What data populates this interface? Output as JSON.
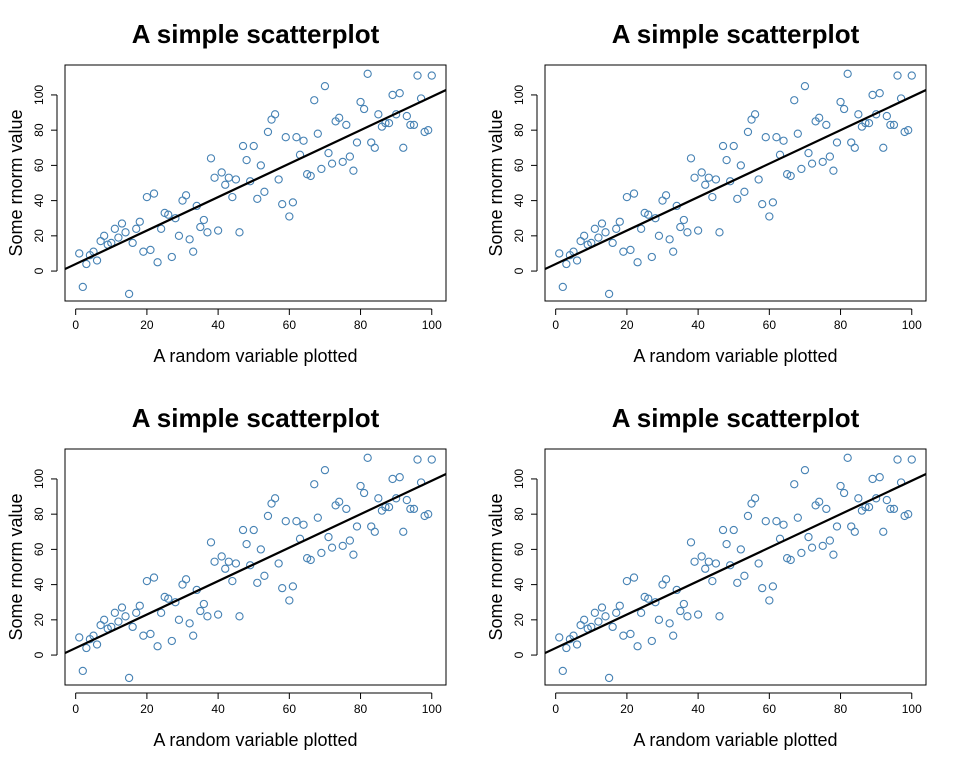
{
  "chart_data": [
    {
      "type": "scatter",
      "title": "A simple scatterplot",
      "xlabel": "A random variable plotted",
      "ylabel": "Some rnorm value",
      "xlim": [
        -3,
        104
      ],
      "ylim": [
        -17,
        117
      ],
      "xticks": [
        0,
        20,
        40,
        60,
        80,
        100
      ],
      "yticks": [
        0,
        20,
        40,
        60,
        80,
        100
      ],
      "grid": false,
      "point_color": "#4682b4",
      "line_color": "#000000",
      "fit_line": {
        "intercept": 4.0,
        "slope": 0.95
      },
      "series": [
        {
          "x": [
            1,
            2,
            3,
            4,
            5,
            6,
            7,
            8,
            9,
            10,
            11,
            12,
            13,
            14,
            15,
            16,
            17,
            18,
            19,
            20,
            21,
            22,
            23,
            24,
            25,
            26,
            27,
            28,
            29,
            30,
            31,
            32,
            33,
            34,
            35,
            36,
            37,
            38,
            39,
            40,
            41,
            42,
            43,
            44,
            45,
            46,
            47,
            48,
            49,
            50,
            51,
            52,
            53,
            54,
            55,
            56,
            57,
            58,
            59,
            60,
            61,
            62,
            63,
            64,
            65,
            66,
            67,
            68,
            69,
            70,
            71,
            72,
            73,
            74,
            75,
            76,
            77,
            78,
            79,
            80,
            81,
            82,
            83,
            84,
            85,
            86,
            87,
            88,
            89,
            90,
            91,
            92,
            93,
            94,
            95,
            96,
            97,
            98,
            99,
            100
          ],
          "y": [
            10,
            -9,
            4,
            9,
            11,
            6,
            17,
            20,
            15,
            16,
            24,
            19,
            27,
            22,
            -13,
            16,
            24,
            28,
            11,
            42,
            12,
            44,
            5,
            24,
            33,
            32,
            8,
            30,
            20,
            40,
            43,
            18,
            11,
            37,
            25,
            29,
            22,
            64,
            53,
            23,
            56,
            49,
            53,
            42,
            52,
            22,
            71,
            63,
            51,
            71,
            41,
            60,
            45,
            79,
            86,
            89,
            52,
            38,
            76,
            31,
            39,
            76,
            66,
            74,
            55,
            54,
            97,
            78,
            58,
            105,
            67,
            61,
            85,
            87,
            62,
            83,
            65,
            57,
            73,
            96,
            92,
            112,
            73,
            70,
            89,
            82,
            84,
            84,
            100,
            89,
            101,
            70,
            88,
            83,
            83,
            111,
            98,
            79,
            80,
            111
          ]
        }
      ]
    },
    {
      "type": "scatter",
      "title": "A simple scatterplot",
      "xlabel": "A random variable plotted",
      "ylabel": "Some rnorm value",
      "xlim": [
        -3,
        104
      ],
      "ylim": [
        -17,
        117
      ],
      "xticks": [
        0,
        20,
        40,
        60,
        80,
        100
      ],
      "yticks": [
        0,
        20,
        40,
        60,
        80,
        100
      ],
      "grid": false,
      "point_color": "#4682b4",
      "line_color": "#000000",
      "fit_line": {
        "intercept": 4.0,
        "slope": 0.95
      },
      "series": [
        {
          "x": [
            1,
            2,
            3,
            4,
            5,
            6,
            7,
            8,
            9,
            10,
            11,
            12,
            13,
            14,
            15,
            16,
            17,
            18,
            19,
            20,
            21,
            22,
            23,
            24,
            25,
            26,
            27,
            28,
            29,
            30,
            31,
            32,
            33,
            34,
            35,
            36,
            37,
            38,
            39,
            40,
            41,
            42,
            43,
            44,
            45,
            46,
            47,
            48,
            49,
            50,
            51,
            52,
            53,
            54,
            55,
            56,
            57,
            58,
            59,
            60,
            61,
            62,
            63,
            64,
            65,
            66,
            67,
            68,
            69,
            70,
            71,
            72,
            73,
            74,
            75,
            76,
            77,
            78,
            79,
            80,
            81,
            82,
            83,
            84,
            85,
            86,
            87,
            88,
            89,
            90,
            91,
            92,
            93,
            94,
            95,
            96,
            97,
            98,
            99,
            100
          ],
          "y": [
            10,
            -9,
            4,
            9,
            11,
            6,
            17,
            20,
            15,
            16,
            24,
            19,
            27,
            22,
            -13,
            16,
            24,
            28,
            11,
            42,
            12,
            44,
            5,
            24,
            33,
            32,
            8,
            30,
            20,
            40,
            43,
            18,
            11,
            37,
            25,
            29,
            22,
            64,
            53,
            23,
            56,
            49,
            53,
            42,
            52,
            22,
            71,
            63,
            51,
            71,
            41,
            60,
            45,
            79,
            86,
            89,
            52,
            38,
            76,
            31,
            39,
            76,
            66,
            74,
            55,
            54,
            97,
            78,
            58,
            105,
            67,
            61,
            85,
            87,
            62,
            83,
            65,
            57,
            73,
            96,
            92,
            112,
            73,
            70,
            89,
            82,
            84,
            84,
            100,
            89,
            101,
            70,
            88,
            83,
            83,
            111,
            98,
            79,
            80,
            111
          ]
        }
      ]
    },
    {
      "type": "scatter",
      "title": "A simple scatterplot",
      "xlabel": "A random variable plotted",
      "ylabel": "Some rnorm value",
      "xlim": [
        -3,
        104
      ],
      "ylim": [
        -17,
        117
      ],
      "xticks": [
        0,
        20,
        40,
        60,
        80,
        100
      ],
      "yticks": [
        0,
        20,
        40,
        60,
        80,
        100
      ],
      "grid": false,
      "point_color": "#4682b4",
      "line_color": "#000000",
      "fit_line": {
        "intercept": 4.0,
        "slope": 0.95
      },
      "series": [
        {
          "x": [
            1,
            2,
            3,
            4,
            5,
            6,
            7,
            8,
            9,
            10,
            11,
            12,
            13,
            14,
            15,
            16,
            17,
            18,
            19,
            20,
            21,
            22,
            23,
            24,
            25,
            26,
            27,
            28,
            29,
            30,
            31,
            32,
            33,
            34,
            35,
            36,
            37,
            38,
            39,
            40,
            41,
            42,
            43,
            44,
            45,
            46,
            47,
            48,
            49,
            50,
            51,
            52,
            53,
            54,
            55,
            56,
            57,
            58,
            59,
            60,
            61,
            62,
            63,
            64,
            65,
            66,
            67,
            68,
            69,
            70,
            71,
            72,
            73,
            74,
            75,
            76,
            77,
            78,
            79,
            80,
            81,
            82,
            83,
            84,
            85,
            86,
            87,
            88,
            89,
            90,
            91,
            92,
            93,
            94,
            95,
            96,
            97,
            98,
            99,
            100
          ],
          "y": [
            10,
            -9,
            4,
            9,
            11,
            6,
            17,
            20,
            15,
            16,
            24,
            19,
            27,
            22,
            -13,
            16,
            24,
            28,
            11,
            42,
            12,
            44,
            5,
            24,
            33,
            32,
            8,
            30,
            20,
            40,
            43,
            18,
            11,
            37,
            25,
            29,
            22,
            64,
            53,
            23,
            56,
            49,
            53,
            42,
            52,
            22,
            71,
            63,
            51,
            71,
            41,
            60,
            45,
            79,
            86,
            89,
            52,
            38,
            76,
            31,
            39,
            76,
            66,
            74,
            55,
            54,
            97,
            78,
            58,
            105,
            67,
            61,
            85,
            87,
            62,
            83,
            65,
            57,
            73,
            96,
            92,
            112,
            73,
            70,
            89,
            82,
            84,
            84,
            100,
            89,
            101,
            70,
            88,
            83,
            83,
            111,
            98,
            79,
            80,
            111
          ]
        }
      ]
    },
    {
      "type": "scatter",
      "title": "A simple scatterplot",
      "xlabel": "A random variable plotted",
      "ylabel": "Some rnorm value",
      "xlim": [
        -3,
        104
      ],
      "ylim": [
        -17,
        117
      ],
      "xticks": [
        0,
        20,
        40,
        60,
        80,
        100
      ],
      "yticks": [
        0,
        20,
        40,
        60,
        80,
        100
      ],
      "grid": false,
      "point_color": "#4682b4",
      "line_color": "#000000",
      "fit_line": {
        "intercept": 4.0,
        "slope": 0.95
      },
      "series": [
        {
          "x": [
            1,
            2,
            3,
            4,
            5,
            6,
            7,
            8,
            9,
            10,
            11,
            12,
            13,
            14,
            15,
            16,
            17,
            18,
            19,
            20,
            21,
            22,
            23,
            24,
            25,
            26,
            27,
            28,
            29,
            30,
            31,
            32,
            33,
            34,
            35,
            36,
            37,
            38,
            39,
            40,
            41,
            42,
            43,
            44,
            45,
            46,
            47,
            48,
            49,
            50,
            51,
            52,
            53,
            54,
            55,
            56,
            57,
            58,
            59,
            60,
            61,
            62,
            63,
            64,
            65,
            66,
            67,
            68,
            69,
            70,
            71,
            72,
            73,
            74,
            75,
            76,
            77,
            78,
            79,
            80,
            81,
            82,
            83,
            84,
            85,
            86,
            87,
            88,
            89,
            90,
            91,
            92,
            93,
            94,
            95,
            96,
            97,
            98,
            99,
            100
          ],
          "y": [
            10,
            -9,
            4,
            9,
            11,
            6,
            17,
            20,
            15,
            16,
            24,
            19,
            27,
            22,
            -13,
            16,
            24,
            28,
            11,
            42,
            12,
            44,
            5,
            24,
            33,
            32,
            8,
            30,
            20,
            40,
            43,
            18,
            11,
            37,
            25,
            29,
            22,
            64,
            53,
            23,
            56,
            49,
            53,
            42,
            52,
            22,
            71,
            63,
            51,
            71,
            41,
            60,
            45,
            79,
            86,
            89,
            52,
            38,
            76,
            31,
            39,
            76,
            66,
            74,
            55,
            54,
            97,
            78,
            58,
            105,
            67,
            61,
            85,
            87,
            62,
            83,
            65,
            57,
            73,
            96,
            92,
            112,
            73,
            70,
            89,
            82,
            84,
            84,
            100,
            89,
            101,
            70,
            88,
            83,
            83,
            111,
            98,
            79,
            80,
            111
          ]
        }
      ]
    }
  ]
}
